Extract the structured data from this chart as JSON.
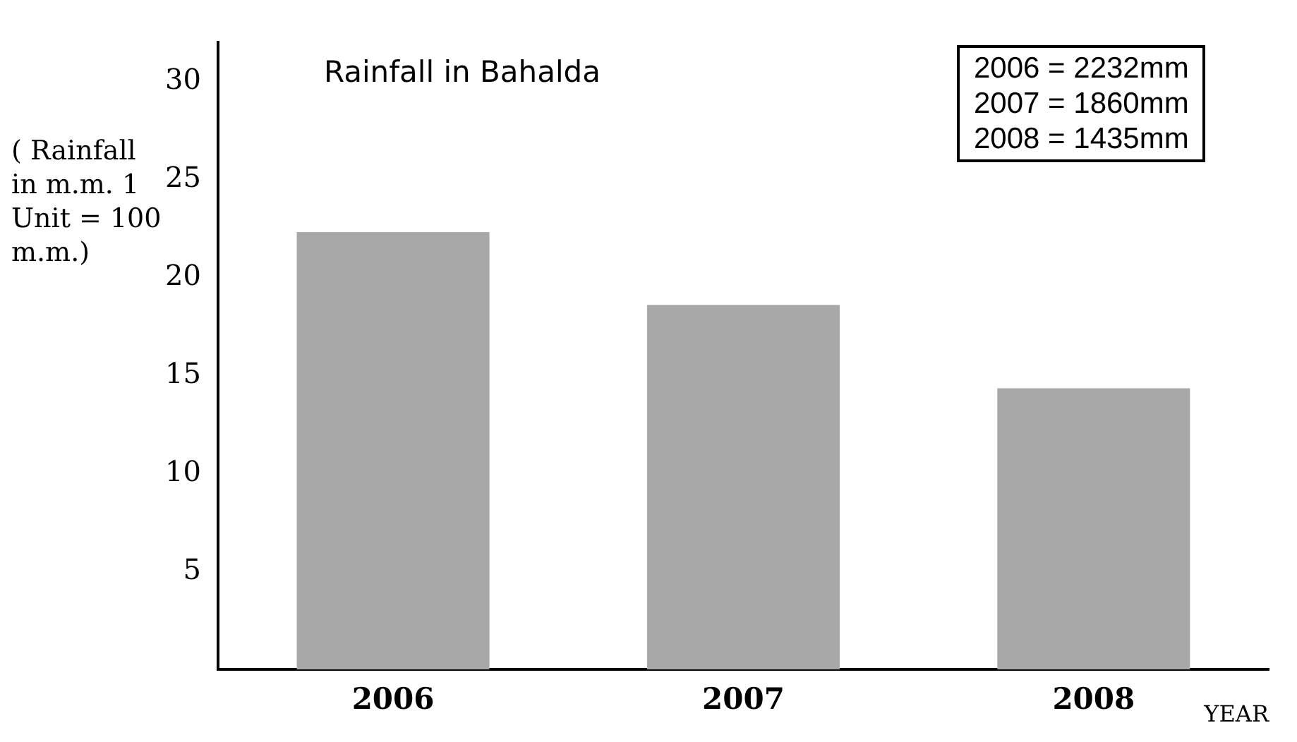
{
  "chart_data": {
    "type": "bar",
    "title": "Rainfall in Bahalda",
    "ylabel": "( Rainfall in m.m. 1 Unit = 100 m.m.)",
    "xlabel": "YEAR",
    "categories": [
      "2006",
      "2007",
      "2008"
    ],
    "values": [
      22.32,
      18.6,
      14.35
    ],
    "color": "#a8a8a8",
    "ylim": [
      0,
      32
    ],
    "yticks": [
      5,
      10,
      15,
      20,
      25,
      30
    ],
    "grid": false,
    "legend": false,
    "annotations": [
      "2006 = 2232mm",
      "2007 = 1860mm",
      "2008 = 1435mm"
    ]
  }
}
